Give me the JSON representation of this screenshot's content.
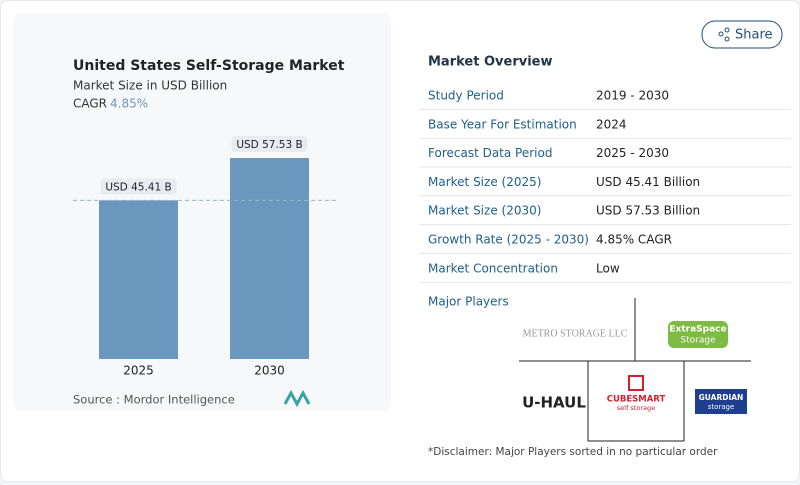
{
  "chart_data": {
    "type": "bar",
    "title": "United States Self-Storage Market",
    "subtitle": "Market Size in USD Billion",
    "cagr_label": "CAGR",
    "cagr_value": "4.85%",
    "categories": [
      "2025",
      "2030"
    ],
    "values": [
      45.41,
      57.53
    ],
    "value_labels": [
      "USD 45.41 B",
      "USD 57.53 B"
    ],
    "color": "#6a97bd",
    "source": "Source :  Mordor Intelligence"
  },
  "share": "Share",
  "overview": {
    "title": "Market Overview",
    "rows": [
      [
        "Study Period",
        "2019 - 2030"
      ],
      [
        "Base Year For Estimation",
        "2024"
      ],
      [
        "Forecast Data Period",
        "2025 - 2030"
      ],
      [
        "Market Size (2025)",
        "USD 45.41 Billion"
      ],
      [
        "Market Size (2030)",
        "USD 57.53 Billion"
      ],
      [
        "Growth Rate (2025 - 2030)",
        "4.85% CAGR"
      ],
      [
        "Market Concentration",
        "Low"
      ]
    ]
  },
  "players": {
    "title": "Major Players",
    "logos": [
      "METRO STORAGE LLC",
      "ExtraSpace",
      "Storage",
      "U-HAUL",
      "CUBESMART",
      "self storage",
      "GUARDIAN",
      "storage"
    ]
  },
  "disclaimer": "*Disclaimer: Major Players sorted in no particular order"
}
